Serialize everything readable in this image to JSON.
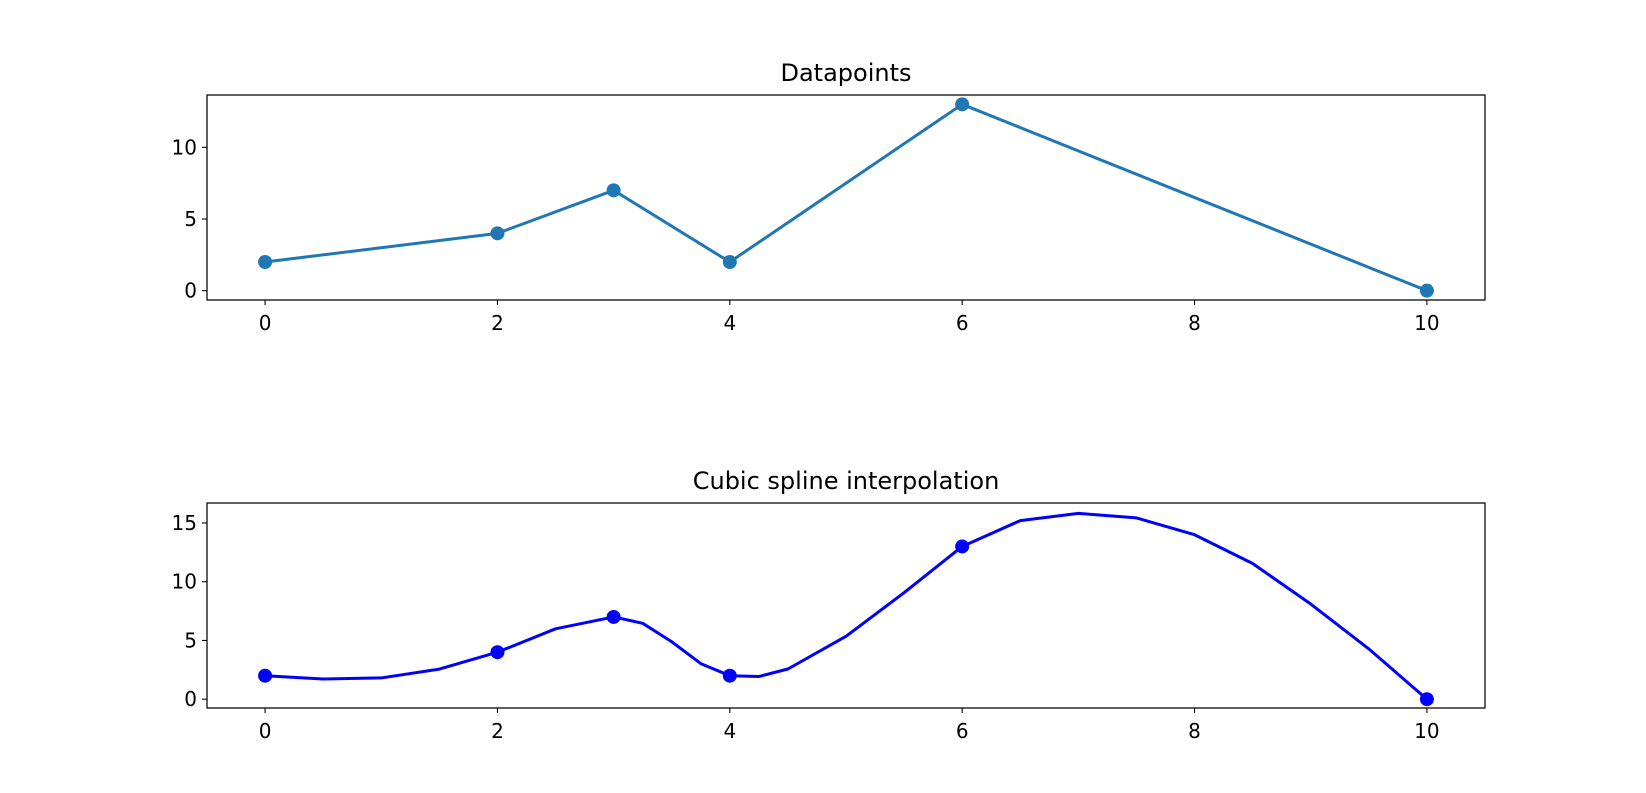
{
  "chart_data": [
    {
      "type": "line",
      "title": "Datapoints",
      "xlabel": "",
      "ylabel": "",
      "xlim": [
        -0.5,
        10.5
      ],
      "ylim": [
        -0.65,
        13.65
      ],
      "xticks": [
        0,
        2,
        4,
        6,
        8,
        10
      ],
      "yticks": [
        0,
        5,
        10
      ],
      "grid": false,
      "series": [
        {
          "color": "#1f77b4",
          "marker": "circle",
          "x": [
            0,
            2,
            3,
            4,
            6,
            10
          ],
          "y": [
            2,
            4,
            7,
            2,
            13,
            0
          ]
        }
      ]
    },
    {
      "type": "line",
      "title": "Cubic spline interpolation",
      "xlabel": "",
      "ylabel": "",
      "xlim": [
        -0.5,
        10.5
      ],
      "ylim": [
        -0.75,
        16.7
      ],
      "xticks": [
        0,
        2,
        4,
        6,
        8,
        10
      ],
      "yticks": [
        0,
        5,
        10,
        15
      ],
      "grid": false,
      "series": [
        {
          "color": "#0000ff",
          "marker": "none",
          "x": [
            0,
            0.5,
            1,
            1.5,
            2,
            2.5,
            3,
            3.25,
            3.5,
            3.75,
            4,
            4.25,
            4.5,
            5,
            5.5,
            6,
            6.5,
            7,
            7.5,
            8,
            8.5,
            9,
            9.5,
            10
          ],
          "y": [
            2.0,
            1.72,
            1.81,
            2.56,
            4.0,
            5.99,
            7.0,
            6.46,
            4.89,
            3.03,
            2.0,
            1.93,
            2.57,
            5.35,
            9.07,
            13.0,
            15.2,
            15.82,
            15.43,
            14.0,
            11.55,
            8.1,
            4.28,
            0.0
          ]
        },
        {
          "color": "#0000ff",
          "marker": "circle",
          "linestyle": "none",
          "x": [
            0,
            2,
            3,
            4,
            6,
            10
          ],
          "y": [
            2,
            4,
            7,
            2,
            13,
            0
          ]
        }
      ]
    }
  ]
}
